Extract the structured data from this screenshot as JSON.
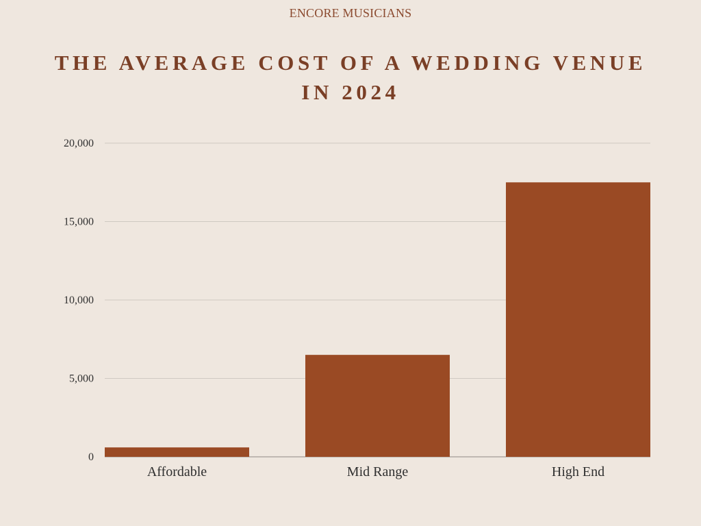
{
  "brand": "ENCORE MUSICIANS",
  "title": "THE AVERAGE COST OF A WEDDING VENUE IN 2024",
  "colors": {
    "background": "#EFE7DF",
    "bar": "#9A4A24",
    "grid": "#CFC9C2",
    "title": "#7A3F26"
  },
  "chart_data": {
    "type": "bar",
    "title": "THE AVERAGE COST OF A WEDDING VENUE IN 2024",
    "xlabel": "",
    "ylabel": "",
    "categories": [
      "Affordable",
      "Mid Range",
      "High End"
    ],
    "values": [
      600,
      6500,
      17500
    ],
    "ylim": [
      0,
      20000
    ],
    "yticks": [
      0,
      5000,
      10000,
      15000,
      20000
    ],
    "ytick_labels": [
      "0",
      "5,000",
      "10,000",
      "15,000",
      "20,000"
    ],
    "grid": true,
    "legend": "none"
  }
}
